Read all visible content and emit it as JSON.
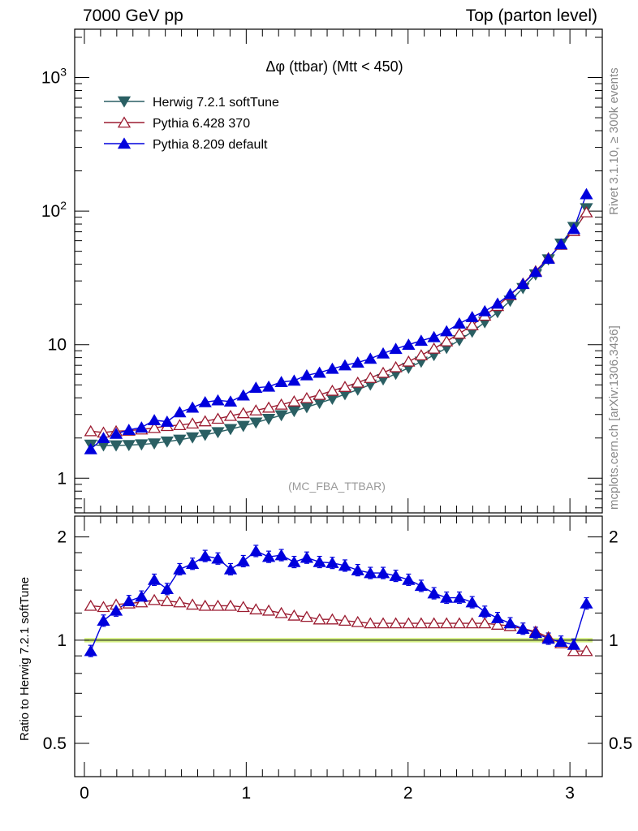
{
  "header": {
    "left": "7000 GeV pp",
    "right": "Top (parton level)"
  },
  "side": {
    "rivet": "Rivet 3.1.10, ≥ 300k events",
    "mcplots": "mcplots.cern.ch [arXiv:1306.3436]"
  },
  "chart_data": {
    "type": "line",
    "title": "Δφ (ttbar) (Mtt < 450)",
    "watermark": "(MC_FBA_TTBAR)",
    "main": {
      "yscale": "log",
      "ylim": [
        0.55,
        2300
      ],
      "xlim": [
        -0.06,
        3.2
      ],
      "yticklabels": [
        "1",
        "10",
        "10²",
        "10³"
      ],
      "legend_position": "top-left"
    },
    "ratio": {
      "ylabel": "Ratio to Herwig 7.2.1 softTune",
      "ylim": [
        0.4,
        2.3
      ],
      "yticklabels": [
        "0.5",
        "1",
        "2"
      ],
      "reference_band_color": "#ccee66"
    },
    "x": [
      0.039,
      0.118,
      0.196,
      0.275,
      0.353,
      0.432,
      0.511,
      0.589,
      0.668,
      0.746,
      0.825,
      0.903,
      0.982,
      1.06,
      1.139,
      1.217,
      1.296,
      1.374,
      1.453,
      1.532,
      1.61,
      1.689,
      1.767,
      1.846,
      1.924,
      2.003,
      2.081,
      2.16,
      2.238,
      2.317,
      2.396,
      2.474,
      2.553,
      2.631,
      2.71,
      2.788,
      2.867,
      2.945,
      3.024,
      3.102
    ],
    "xticklabels": [
      "0",
      "1",
      "2",
      "3"
    ],
    "series": [
      {
        "name": "Herwig 7.2.1 softTune",
        "color": "#2a5f63",
        "marker": "triangle-down-filled",
        "values": [
          1.78,
          1.76,
          1.76,
          1.77,
          1.79,
          1.82,
          1.88,
          1.94,
          2.02,
          2.11,
          2.21,
          2.33,
          2.46,
          2.61,
          2.78,
          2.96,
          3.18,
          3.4,
          3.66,
          3.93,
          4.25,
          4.6,
          5.02,
          5.49,
          6.05,
          6.7,
          7.45,
          8.35,
          9.45,
          10.8,
          12.5,
          14.7,
          17.5,
          21.3,
          26.5,
          33.5,
          43.5,
          57.0,
          76.0,
          105
        ]
      },
      {
        "name": "Pythia 6.428 370",
        "color": "#9b1b30",
        "marker": "triangle-up-open",
        "values": [
          2.25,
          2.2,
          2.25,
          2.27,
          2.32,
          2.38,
          2.46,
          2.5,
          2.57,
          2.67,
          2.79,
          2.93,
          3.07,
          3.22,
          3.38,
          3.56,
          3.76,
          3.98,
          4.21,
          4.52,
          4.83,
          5.2,
          5.64,
          6.16,
          6.78,
          7.48,
          8.33,
          9.35,
          10.6,
          12.1,
          14.0,
          16.5,
          19.5,
          23.5,
          28.7,
          35.5,
          44.5,
          56.0,
          71.0,
          98.0
        ]
      },
      {
        "name": "Pythia 8.209 default",
        "color": "#0000dd",
        "marker": "triangle-up-filled",
        "values": [
          1.65,
          2.0,
          2.15,
          2.3,
          2.4,
          2.72,
          2.65,
          3.12,
          3.38,
          3.71,
          3.83,
          3.75,
          4.17,
          4.76,
          4.85,
          5.25,
          5.38,
          5.9,
          6.17,
          6.6,
          7.0,
          7.35,
          7.85,
          8.6,
          9.3,
          10.0,
          10.7,
          11.4,
          12.6,
          14.4,
          16.1,
          17.8,
          20.3,
          23.9,
          28.5,
          35.1,
          44.0,
          56.5,
          73.5,
          134
        ]
      }
    ],
    "ratio_series": [
      {
        "name": "Pythia 6.428 370",
        "values": [
          1.26,
          1.25,
          1.27,
          1.28,
          1.29,
          1.31,
          1.3,
          1.29,
          1.27,
          1.26,
          1.26,
          1.26,
          1.25,
          1.23,
          1.22,
          1.2,
          1.18,
          1.17,
          1.15,
          1.15,
          1.14,
          1.13,
          1.12,
          1.12,
          1.12,
          1.12,
          1.12,
          1.12,
          1.12,
          1.12,
          1.12,
          1.12,
          1.11,
          1.1,
          1.08,
          1.06,
          1.02,
          0.98,
          0.93,
          0.93
        ]
      },
      {
        "name": "Pythia 8.209 default",
        "values": [
          0.93,
          1.14,
          1.22,
          1.3,
          1.34,
          1.5,
          1.41,
          1.61,
          1.67,
          1.76,
          1.73,
          1.61,
          1.7,
          1.82,
          1.75,
          1.77,
          1.69,
          1.74,
          1.69,
          1.68,
          1.65,
          1.6,
          1.57,
          1.57,
          1.54,
          1.5,
          1.44,
          1.37,
          1.33,
          1.33,
          1.29,
          1.21,
          1.16,
          1.12,
          1.08,
          1.05,
          1.01,
          0.99,
          0.97,
          1.28
        ]
      }
    ]
  }
}
